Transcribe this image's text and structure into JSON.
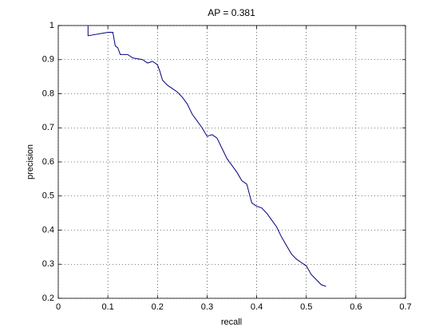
{
  "chart_data": {
    "type": "line",
    "title": "AP = 0.381",
    "xlabel": "recall",
    "ylabel": "precision",
    "x": [
      0.06,
      0.06,
      0.1,
      0.11,
      0.115,
      0.12,
      0.125,
      0.14,
      0.15,
      0.17,
      0.18,
      0.19,
      0.2,
      0.205,
      0.21,
      0.22,
      0.23,
      0.24,
      0.25,
      0.26,
      0.27,
      0.28,
      0.29,
      0.3,
      0.31,
      0.32,
      0.33,
      0.34,
      0.35,
      0.36,
      0.37,
      0.38,
      0.39,
      0.4,
      0.41,
      0.42,
      0.43,
      0.44,
      0.45,
      0.46,
      0.47,
      0.48,
      0.49,
      0.5,
      0.51,
      0.52,
      0.53,
      0.54
    ],
    "values": [
      1.0,
      0.97,
      0.98,
      0.98,
      0.94,
      0.935,
      0.915,
      0.915,
      0.905,
      0.9,
      0.89,
      0.895,
      0.885,
      0.865,
      0.84,
      0.825,
      0.815,
      0.805,
      0.79,
      0.77,
      0.74,
      0.72,
      0.7,
      0.675,
      0.68,
      0.67,
      0.64,
      0.61,
      0.59,
      0.57,
      0.545,
      0.535,
      0.48,
      0.47,
      0.465,
      0.45,
      0.43,
      0.41,
      0.38,
      0.355,
      0.33,
      0.315,
      0.305,
      0.295,
      0.27,
      0.255,
      0.24,
      0.235
    ],
    "color": "#000080",
    "xlim": [
      0,
      0.7
    ],
    "xticks": [
      0,
      0.1,
      0.2,
      0.3,
      0.4,
      0.5,
      0.6,
      0.7
    ],
    "ylim": [
      0.2,
      1
    ],
    "yticks": [
      0.2,
      0.3,
      0.4,
      0.5,
      0.6,
      0.7,
      0.8,
      0.9,
      1
    ],
    "grid": true
  }
}
